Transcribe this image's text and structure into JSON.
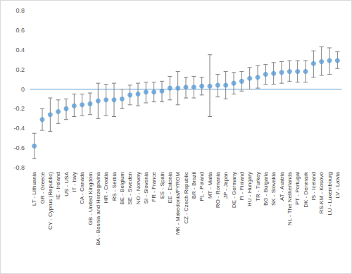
{
  "chart_data": {
    "type": "scatter",
    "categories": [
      "LT - Lithuania",
      "GR - Greece",
      "CY - Cyprus (Republic)",
      "IE - Ireland",
      "US - USA",
      "IT - Italy",
      "CA - Canada",
      "GB - United Kingdom",
      "BA - Bosnia and Herzegovina",
      "HR - Croatia",
      "RS - Serbia",
      "BE - Belgium",
      "SE - Sweden",
      "NO - Norway",
      "SI - Slovenia",
      "FR - France",
      "ES - Spain",
      "EE - Estonia",
      "MK - Makedonia/FYROM",
      "CZ - Czech Republic",
      "BR - Brazil",
      "PL - Poland",
      "MT - Malta",
      "RO - Romania",
      "JP - Japan",
      "DE - Germany",
      "FI - Finland",
      "HU - Hungary",
      "TR - Turkey",
      "BG - Bulgaria",
      "SK - Slovakia",
      "AT - Austria",
      "NL - The Netherlands",
      "PT - Portugal",
      "DK - Denmark",
      "IS - Iceland",
      "RS-KM - Kosovo",
      "LU - Luxembourg",
      "LV - Latvia"
    ],
    "values": [
      -0.58,
      -0.31,
      -0.26,
      -0.23,
      -0.2,
      -0.17,
      -0.16,
      -0.15,
      -0.12,
      -0.11,
      -0.11,
      -0.1,
      -0.06,
      -0.05,
      -0.03,
      -0.03,
      -0.02,
      0.01,
      0.01,
      0.02,
      0.02,
      0.03,
      0.03,
      0.04,
      0.04,
      0.06,
      0.08,
      0.11,
      0.12,
      0.15,
      0.16,
      0.17,
      0.18,
      0.18,
      0.18,
      0.26,
      0.28,
      0.29,
      0.29
    ],
    "lower": [
      -0.71,
      -0.42,
      -0.43,
      -0.35,
      -0.31,
      -0.28,
      -0.27,
      -0.26,
      -0.3,
      -0.27,
      -0.28,
      -0.2,
      -0.16,
      -0.17,
      -0.14,
      -0.13,
      -0.13,
      -0.11,
      -0.16,
      -0.09,
      -0.09,
      -0.06,
      -0.28,
      -0.08,
      -0.1,
      -0.05,
      -0.02,
      0.0,
      0.01,
      0.05,
      0.05,
      0.06,
      0.08,
      0.07,
      0.07,
      0.12,
      0.14,
      0.15,
      0.21
    ],
    "upper": [
      -0.45,
      -0.2,
      -0.09,
      -0.11,
      -0.1,
      -0.05,
      -0.05,
      -0.04,
      0.06,
      0.05,
      0.06,
      0.0,
      0.04,
      0.06,
      0.07,
      0.07,
      0.08,
      0.13,
      0.18,
      0.12,
      0.13,
      0.12,
      0.35,
      0.15,
      0.18,
      0.17,
      0.18,
      0.22,
      0.24,
      0.25,
      0.27,
      0.28,
      0.29,
      0.29,
      0.29,
      0.39,
      0.43,
      0.42,
      0.38
    ],
    "color": "#5b9bd5",
    "ylim": [
      -0.8,
      0.8
    ],
    "yticks": [
      -0.8,
      -0.6,
      -0.4,
      -0.2,
      0,
      0.2,
      0.4,
      0.6,
      0.8
    ],
    "grid": false
  }
}
